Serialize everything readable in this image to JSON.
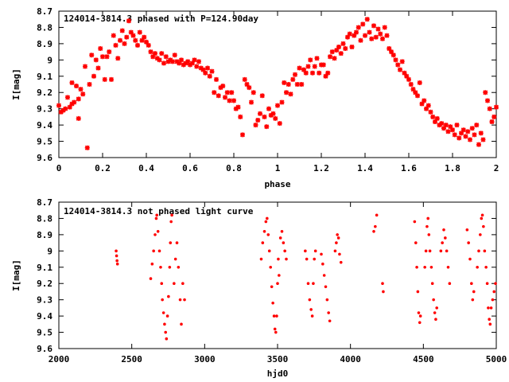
{
  "chart_data": [
    {
      "type": "scatter",
      "title": "124014-3814.3 phased with P=124.90day",
      "xlabel": "phase",
      "ylabel": "I[mag]",
      "xlim": [
        0,
        2
      ],
      "ylim": [
        9.6,
        8.7
      ],
      "y_inverted": true,
      "xticks": [
        "0",
        "0.2",
        "0.4",
        "0.6",
        "0.8",
        "1",
        "1.2",
        "1.4",
        "1.6",
        "1.8",
        "2"
      ],
      "yticks": [
        "8.7",
        "8.8",
        "8.9",
        "9",
        "9.1",
        "9.2",
        "9.3",
        "9.4",
        "9.5",
        "9.6"
      ],
      "marker": "star",
      "color": "#ff0000",
      "points": [
        [
          0.0,
          9.28
        ],
        [
          0.01,
          9.32
        ],
        [
          0.02,
          9.31
        ],
        [
          0.03,
          9.3
        ],
        [
          0.04,
          9.23
        ],
        [
          0.05,
          9.29
        ],
        [
          0.06,
          9.14
        ],
        [
          0.06,
          9.27
        ],
        [
          0.07,
          9.26
        ],
        [
          0.08,
          9.16
        ],
        [
          0.09,
          9.24
        ],
        [
          0.09,
          9.36
        ],
        [
          0.1,
          9.18
        ],
        [
          0.11,
          9.21
        ],
        [
          0.12,
          9.04
        ],
        [
          0.13,
          9.54
        ],
        [
          0.14,
          9.15
        ],
        [
          0.15,
          8.97
        ],
        [
          0.16,
          9.1
        ],
        [
          0.17,
          9.0
        ],
        [
          0.18,
          9.05
        ],
        [
          0.19,
          8.93
        ],
        [
          0.2,
          8.98
        ],
        [
          0.21,
          9.12
        ],
        [
          0.22,
          8.98
        ],
        [
          0.23,
          8.95
        ],
        [
          0.24,
          9.12
        ],
        [
          0.25,
          8.85
        ],
        [
          0.26,
          8.91
        ],
        [
          0.27,
          8.99
        ],
        [
          0.28,
          8.88
        ],
        [
          0.29,
          8.82
        ],
        [
          0.3,
          8.9
        ],
        [
          0.31,
          8.86
        ],
        [
          0.32,
          8.76
        ],
        [
          0.33,
          8.83
        ],
        [
          0.34,
          8.85
        ],
        [
          0.35,
          8.88
        ],
        [
          0.36,
          8.91
        ],
        [
          0.37,
          8.83
        ],
        [
          0.38,
          8.88
        ],
        [
          0.39,
          8.86
        ],
        [
          0.4,
          8.89
        ],
        [
          0.41,
          8.91
        ],
        [
          0.42,
          8.95
        ],
        [
          0.43,
          8.98
        ],
        [
          0.44,
          8.96
        ],
        [
          0.45,
          8.99
        ],
        [
          0.46,
          9.0
        ],
        [
          0.47,
          8.96
        ],
        [
          0.48,
          9.02
        ],
        [
          0.49,
          8.98
        ],
        [
          0.5,
          9.01
        ],
        [
          0.51,
          9.0
        ],
        [
          0.52,
          9.01
        ],
        [
          0.53,
          8.97
        ],
        [
          0.54,
          9.01
        ],
        [
          0.55,
          9.02
        ],
        [
          0.56,
          9.0
        ],
        [
          0.57,
          9.03
        ],
        [
          0.58,
          9.02
        ],
        [
          0.59,
          9.01
        ],
        [
          0.6,
          9.03
        ],
        [
          0.61,
          9.02
        ],
        [
          0.62,
          9.0
        ],
        [
          0.63,
          9.04
        ],
        [
          0.64,
          9.01
        ],
        [
          0.65,
          9.05
        ],
        [
          0.66,
          9.06
        ],
        [
          0.67,
          9.08
        ],
        [
          0.68,
          9.05
        ],
        [
          0.69,
          9.1
        ],
        [
          0.7,
          9.07
        ],
        [
          0.71,
          9.2
        ],
        [
          0.72,
          9.12
        ],
        [
          0.73,
          9.22
        ],
        [
          0.74,
          9.17
        ],
        [
          0.75,
          9.16
        ],
        [
          0.76,
          9.23
        ],
        [
          0.77,
          9.2
        ],
        [
          0.78,
          9.25
        ],
        [
          0.79,
          9.2
        ],
        [
          0.8,
          9.25
        ],
        [
          0.81,
          9.3
        ],
        [
          0.82,
          9.29
        ],
        [
          0.83,
          9.35
        ],
        [
          0.84,
          9.46
        ],
        [
          0.85,
          9.12
        ],
        [
          0.86,
          9.15
        ],
        [
          0.87,
          9.17
        ],
        [
          0.88,
          9.26
        ],
        [
          0.89,
          9.2
        ],
        [
          0.9,
          9.4
        ],
        [
          0.91,
          9.37
        ],
        [
          0.92,
          9.33
        ],
        [
          0.93,
          9.22
        ],
        [
          0.94,
          9.35
        ],
        [
          0.95,
          9.41
        ],
        [
          0.96,
          9.3
        ],
        [
          0.97,
          9.34
        ],
        [
          0.98,
          9.33
        ],
        [
          0.99,
          9.36
        ],
        [
          1.0,
          9.28
        ],
        [
          1.01,
          9.39
        ],
        [
          1.02,
          9.26
        ],
        [
          1.03,
          9.14
        ],
        [
          1.04,
          9.2
        ],
        [
          1.05,
          9.15
        ],
        [
          1.06,
          9.21
        ],
        [
          1.07,
          9.12
        ],
        [
          1.08,
          9.09
        ],
        [
          1.09,
          9.15
        ],
        [
          1.1,
          9.05
        ],
        [
          1.11,
          9.15
        ],
        [
          1.12,
          9.06
        ],
        [
          1.13,
          9.08
        ],
        [
          1.14,
          9.04
        ],
        [
          1.15,
          9.0
        ],
        [
          1.16,
          9.08
        ],
        [
          1.17,
          9.04
        ],
        [
          1.18,
          8.99
        ],
        [
          1.19,
          9.08
        ],
        [
          1.2,
          9.03
        ],
        [
          1.21,
          9.03
        ],
        [
          1.22,
          9.1
        ],
        [
          1.23,
          9.08
        ],
        [
          1.24,
          8.98
        ],
        [
          1.25,
          8.95
        ],
        [
          1.26,
          8.99
        ],
        [
          1.27,
          8.94
        ],
        [
          1.28,
          8.92
        ],
        [
          1.29,
          8.96
        ],
        [
          1.3,
          8.9
        ],
        [
          1.31,
          8.93
        ],
        [
          1.32,
          8.86
        ],
        [
          1.33,
          8.84
        ],
        [
          1.34,
          8.92
        ],
        [
          1.35,
          8.85
        ],
        [
          1.36,
          8.83
        ],
        [
          1.37,
          8.8
        ],
        [
          1.38,
          8.88
        ],
        [
          1.39,
          8.78
        ],
        [
          1.4,
          8.85
        ],
        [
          1.41,
          8.75
        ],
        [
          1.42,
          8.83
        ],
        [
          1.43,
          8.87
        ],
        [
          1.44,
          8.79
        ],
        [
          1.45,
          8.86
        ],
        [
          1.46,
          8.81
        ],
        [
          1.47,
          8.84
        ],
        [
          1.48,
          8.87
        ],
        [
          1.49,
          8.8
        ],
        [
          1.5,
          8.85
        ],
        [
          1.51,
          8.93
        ],
        [
          1.52,
          8.95
        ],
        [
          1.53,
          8.97
        ],
        [
          1.54,
          9.0
        ],
        [
          1.55,
          9.03
        ],
        [
          1.56,
          9.06
        ],
        [
          1.57,
          9.01
        ],
        [
          1.58,
          9.08
        ],
        [
          1.59,
          9.1
        ],
        [
          1.6,
          9.12
        ],
        [
          1.61,
          9.15
        ],
        [
          1.62,
          9.18
        ],
        [
          1.63,
          9.2
        ],
        [
          1.64,
          9.22
        ],
        [
          1.65,
          9.14
        ],
        [
          1.66,
          9.27
        ],
        [
          1.67,
          9.25
        ],
        [
          1.68,
          9.3
        ],
        [
          1.69,
          9.28
        ],
        [
          1.7,
          9.32
        ],
        [
          1.71,
          9.35
        ],
        [
          1.72,
          9.38
        ],
        [
          1.73,
          9.36
        ],
        [
          1.74,
          9.4
        ],
        [
          1.75,
          9.39
        ],
        [
          1.76,
          9.42
        ],
        [
          1.77,
          9.4
        ],
        [
          1.78,
          9.44
        ],
        [
          1.79,
          9.41
        ],
        [
          1.8,
          9.43
        ],
        [
          1.81,
          9.46
        ],
        [
          1.82,
          9.4
        ],
        [
          1.83,
          9.48
        ],
        [
          1.84,
          9.45
        ],
        [
          1.85,
          9.43
        ],
        [
          1.86,
          9.47
        ],
        [
          1.87,
          9.44
        ],
        [
          1.88,
          9.49
        ],
        [
          1.89,
          9.42
        ],
        [
          1.9,
          9.46
        ],
        [
          1.91,
          9.4
        ],
        [
          1.92,
          9.52
        ],
        [
          1.93,
          9.45
        ],
        [
          1.94,
          9.49
        ],
        [
          1.95,
          9.2
        ],
        [
          1.96,
          9.25
        ],
        [
          1.97,
          9.3
        ],
        [
          1.98,
          9.38
        ],
        [
          1.99,
          9.35
        ],
        [
          2.0,
          9.29
        ]
      ]
    },
    {
      "type": "scatter",
      "title": "124014-3814.3 not phased light curve",
      "xlabel": "hjd0",
      "ylabel": "I[mag]",
      "xlim": [
        2000,
        5000
      ],
      "ylim": [
        9.6,
        8.7
      ],
      "y_inverted": true,
      "xticks": [
        "2000",
        "2500",
        "3000",
        "3500",
        "4000",
        "4500",
        "5000"
      ],
      "yticks": [
        "8.7",
        "8.8",
        "8.9",
        "9",
        "9.1",
        "9.2",
        "9.3",
        "9.4",
        "9.5",
        "9.6"
      ],
      "marker": "dot",
      "color": "#ff0000",
      "points": [
        [
          2393,
          9.0
        ],
        [
          2396,
          9.03
        ],
        [
          2399,
          9.06
        ],
        [
          2402,
          9.08
        ],
        [
          2630,
          9.17
        ],
        [
          2640,
          9.08
        ],
        [
          2650,
          9.0
        ],
        [
          2660,
          8.9
        ],
        [
          2668,
          8.8
        ],
        [
          2672,
          8.78
        ],
        [
          2680,
          8.88
        ],
        [
          2690,
          9.0
        ],
        [
          2698,
          9.1
        ],
        [
          2705,
          9.2
        ],
        [
          2710,
          9.3
        ],
        [
          2718,
          9.38
        ],
        [
          2725,
          9.45
        ],
        [
          2732,
          9.5
        ],
        [
          2738,
          9.54
        ],
        [
          2745,
          9.4
        ],
        [
          2752,
          9.28
        ],
        [
          2760,
          9.1
        ],
        [
          2765,
          8.95
        ],
        [
          2770,
          8.82
        ],
        [
          2775,
          8.78
        ],
        [
          2790,
          9.2
        ],
        [
          2800,
          9.05
        ],
        [
          2810,
          8.95
        ],
        [
          2820,
          9.1
        ],
        [
          2832,
          9.3
        ],
        [
          2840,
          9.45
        ],
        [
          2850,
          9.2
        ],
        [
          2862,
          9.3
        ],
        [
          3388,
          9.05
        ],
        [
          3398,
          8.95
        ],
        [
          3410,
          8.88
        ],
        [
          3420,
          8.82
        ],
        [
          3428,
          8.8
        ],
        [
          3436,
          8.9
        ],
        [
          3444,
          9.0
        ],
        [
          3452,
          9.1
        ],
        [
          3460,
          9.22
        ],
        [
          3468,
          9.32
        ],
        [
          3476,
          9.4
        ],
        [
          3482,
          9.48
        ],
        [
          3488,
          9.5
        ],
        [
          3494,
          9.4
        ],
        [
          3500,
          9.2
        ],
        [
          3505,
          9.05
        ],
        [
          3510,
          9.15
        ],
        [
          3520,
          8.92
        ],
        [
          3530,
          8.88
        ],
        [
          3540,
          8.95
        ],
        [
          3550,
          9.0
        ],
        [
          3560,
          9.05
        ],
        [
          3690,
          9.0
        ],
        [
          3700,
          9.05
        ],
        [
          3710,
          9.2
        ],
        [
          3720,
          9.3
        ],
        [
          3730,
          9.36
        ],
        [
          3738,
          9.4
        ],
        [
          3745,
          9.2
        ],
        [
          3752,
          9.05
        ],
        [
          3760,
          9.0
        ],
        [
          3800,
          9.02
        ],
        [
          3810,
          9.08
        ],
        [
          3820,
          9.15
        ],
        [
          3830,
          9.22
        ],
        [
          3840,
          9.3
        ],
        [
          3850,
          9.38
        ],
        [
          3858,
          9.43
        ],
        [
          3895,
          9.0
        ],
        [
          3903,
          8.95
        ],
        [
          3910,
          8.9
        ],
        [
          3918,
          8.92
        ],
        [
          3925,
          9.02
        ],
        [
          3935,
          9.07
        ],
        [
          4160,
          8.88
        ],
        [
          4170,
          8.85
        ],
        [
          4180,
          8.78
        ],
        [
          4220,
          9.2
        ],
        [
          4225,
          9.25
        ],
        [
          4440,
          8.82
        ],
        [
          4448,
          8.95
        ],
        [
          4455,
          9.1
        ],
        [
          4462,
          9.25
        ],
        [
          4468,
          9.38
        ],
        [
          4475,
          9.44
        ],
        [
          4480,
          9.4
        ],
        [
          4510,
          9.1
        ],
        [
          4518,
          9.0
        ],
        [
          4525,
          8.85
        ],
        [
          4532,
          8.8
        ],
        [
          4538,
          8.9
        ],
        [
          4545,
          9.0
        ],
        [
          4555,
          9.1
        ],
        [
          4562,
          9.2
        ],
        [
          4570,
          9.3
        ],
        [
          4578,
          9.38
        ],
        [
          4585,
          9.42
        ],
        [
          4592,
          9.35
        ],
        [
          4620,
          9.0
        ],
        [
          4630,
          8.95
        ],
        [
          4640,
          8.87
        ],
        [
          4650,
          8.92
        ],
        [
          4660,
          9.0
        ],
        [
          4670,
          9.1
        ],
        [
          4680,
          9.2
        ],
        [
          4800,
          8.87
        ],
        [
          4810,
          8.95
        ],
        [
          4820,
          9.05
        ],
        [
          4830,
          9.2
        ],
        [
          4838,
          9.3
        ],
        [
          4846,
          9.25
        ],
        [
          4870,
          9.1
        ],
        [
          4880,
          9.0
        ],
        [
          4890,
          8.9
        ],
        [
          4898,
          8.8
        ],
        [
          4905,
          8.78
        ],
        [
          4912,
          8.85
        ],
        [
          4920,
          9.0
        ],
        [
          4930,
          9.1
        ],
        [
          4938,
          9.2
        ],
        [
          4945,
          9.35
        ],
        [
          4952,
          9.42
        ],
        [
          4958,
          9.45
        ],
        [
          4965,
          9.35
        ],
        [
          4975,
          9.3
        ],
        [
          4985,
          9.25
        ],
        [
          4995,
          9.2
        ]
      ]
    }
  ]
}
